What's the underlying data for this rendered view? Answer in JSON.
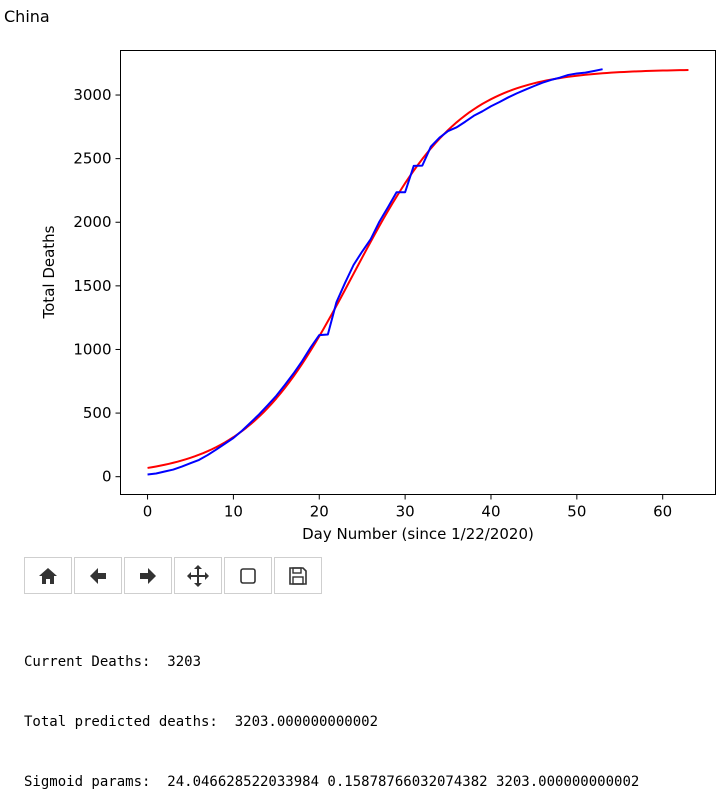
{
  "page": {
    "title": "China"
  },
  "toolbar": {
    "buttons": [
      {
        "icon": "home-icon"
      },
      {
        "icon": "back-arrow-icon"
      },
      {
        "icon": "forward-arrow-icon"
      },
      {
        "icon": "pan-move-icon"
      },
      {
        "icon": "zoom-rect-icon"
      },
      {
        "icon": "save-disk-icon"
      }
    ]
  },
  "output": {
    "line1": "Current Deaths:  3203",
    "line2": "Total predicted deaths:  3203.000000000002",
    "line3": "Sigmoid params:  24.046628522033984 0.15878766032074382 3203.000000000002"
  },
  "chart_data": {
    "type": "line",
    "title": "",
    "xlabel": "Day Number (since 1/22/2020)",
    "ylabel": "Total Deaths",
    "xlim": [
      -3.15,
      66.15
    ],
    "ylim": [
      -140,
      3350
    ],
    "xticks": [
      0,
      10,
      20,
      30,
      40,
      50,
      60
    ],
    "yticks": [
      0,
      500,
      1000,
      1500,
      2000,
      2500,
      3000
    ],
    "grid": false,
    "legend": "none",
    "sigmoid": {
      "x0": 24.046628522033984,
      "k": 0.15878766032074382,
      "L": 3203.000000000002,
      "x_max": 63
    },
    "series": [
      {
        "color": "#0000ff",
        "x": [
          0,
          1,
          2,
          3,
          4,
          5,
          6,
          7,
          8,
          9,
          10,
          11,
          12,
          13,
          14,
          15,
          16,
          17,
          18,
          19,
          20,
          21,
          22,
          23,
          24,
          25,
          26,
          27,
          28,
          29,
          30,
          31,
          32,
          33,
          34,
          35,
          36,
          37,
          38,
          39,
          40,
          41,
          42,
          43,
          44,
          45,
          46,
          47,
          48,
          49,
          50,
          51,
          52,
          53
        ],
        "y": [
          17,
          25,
          41,
          56,
          80,
          106,
          132,
          170,
          213,
          259,
          304,
          361,
          425,
          490,
          562,
          636,
          722,
          811,
          908,
          1016,
          1113,
          1118,
          1371,
          1523,
          1665,
          1770,
          1868,
          2004,
          2118,
          2236,
          2236,
          2443,
          2445,
          2595,
          2665,
          2717,
          2746,
          2790,
          2837,
          2872,
          2912,
          2945,
          2981,
          3013,
          3042,
          3070,
          3097,
          3119,
          3136,
          3158,
          3169,
          3176,
          3189,
          3203
        ]
      },
      {
        "color": "#ff0000",
        "x": [],
        "y": []
      }
    ]
  }
}
